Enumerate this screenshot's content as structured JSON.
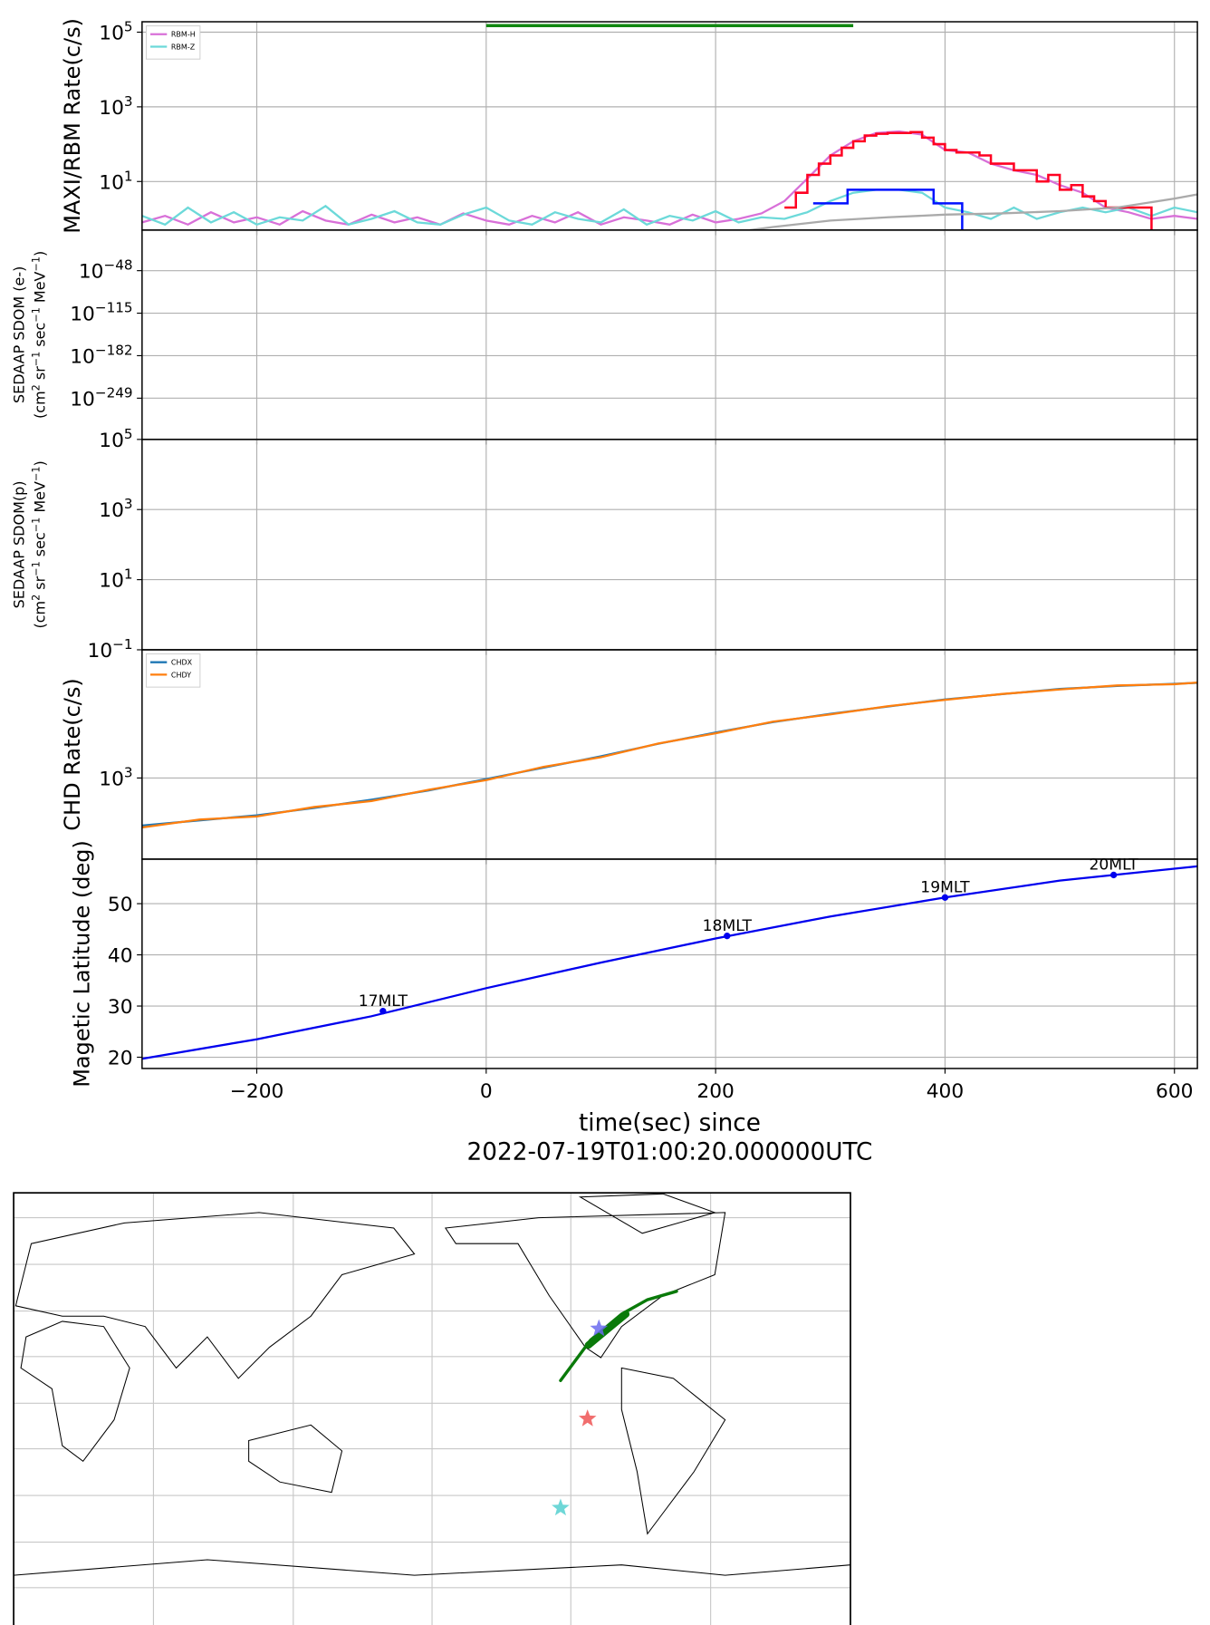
{
  "chart_data": [
    {
      "type": "line",
      "ylabel": "MAXI/RBM Rate(c/s)",
      "log_y": true,
      "grid": true,
      "legend": "upper left",
      "ylim": [
        0.5,
        190000
      ],
      "yticks": [
        {
          "value": 10,
          "label": "10^1"
        },
        {
          "value": 1000,
          "label": "10^3"
        },
        {
          "value": 100000,
          "label": "10^5"
        }
      ],
      "series": [
        {
          "name": "RBM-H",
          "color": "#d870d8",
          "x": [
            -300,
            -280,
            -260,
            -240,
            -220,
            -200,
            -180,
            -160,
            -140,
            -120,
            -100,
            -80,
            -60,
            -40,
            -20,
            0,
            20,
            40,
            60,
            80,
            100,
            120,
            140,
            160,
            180,
            200,
            220,
            240,
            260,
            280,
            300,
            320,
            340,
            360,
            380,
            400,
            420,
            440,
            460,
            480,
            500,
            520,
            540,
            560,
            580,
            600,
            620
          ],
          "values": [
            0.8,
            1.2,
            0.7,
            1.5,
            0.8,
            1.1,
            0.7,
            1.6,
            0.9,
            0.7,
            1.3,
            0.8,
            1.1,
            0.7,
            1.4,
            0.9,
            0.7,
            1.2,
            0.8,
            1.5,
            0.7,
            1.1,
            0.9,
            0.7,
            1.3,
            0.8,
            1.0,
            1.4,
            3,
            12,
            50,
            120,
            200,
            220,
            180,
            70,
            60,
            30,
            20,
            15,
            8,
            5,
            2,
            1.5,
            1,
            1.2,
            1
          ]
        },
        {
          "name": "RBM-Z",
          "color": "#6cd9d9",
          "x": [
            -300,
            -280,
            -260,
            -240,
            -220,
            -200,
            -180,
            -160,
            -140,
            -120,
            -100,
            -80,
            -60,
            -40,
            -20,
            0,
            20,
            40,
            60,
            80,
            100,
            120,
            140,
            160,
            180,
            200,
            220,
            240,
            260,
            280,
            300,
            320,
            340,
            360,
            380,
            400,
            420,
            440,
            460,
            480,
            500,
            520,
            540,
            560,
            580,
            600,
            620
          ],
          "values": [
            1.2,
            0.7,
            2.0,
            0.8,
            1.5,
            0.7,
            1.1,
            0.9,
            2.2,
            0.7,
            1.0,
            1.6,
            0.8,
            0.7,
            1.3,
            2.0,
            0.9,
            0.7,
            1.5,
            1.0,
            0.8,
            1.8,
            0.7,
            1.2,
            0.9,
            1.6,
            0.8,
            1.1,
            1,
            1.5,
            3,
            5,
            6,
            6,
            5,
            2,
            1.5,
            1,
            2,
            1,
            1.5,
            2,
            1.5,
            2,
            1.2,
            2,
            1.5
          ]
        },
        {
          "color": "#ff0022",
          "step": true,
          "x": [
            260,
            270,
            280,
            290,
            300,
            310,
            320,
            330,
            340,
            350,
            360,
            370,
            380,
            390,
            400,
            410,
            420,
            430,
            440,
            450,
            460,
            470,
            480,
            490,
            500,
            510,
            520,
            530,
            540,
            560,
            580
          ],
          "values": [
            2,
            5,
            15,
            30,
            50,
            80,
            120,
            170,
            190,
            200,
            200,
            210,
            150,
            100,
            70,
            60,
            60,
            50,
            30,
            30,
            20,
            20,
            10,
            15,
            6,
            8,
            4,
            3,
            2,
            2,
            2
          ]
        },
        {
          "color": "#0011ff",
          "step": true,
          "x": [
            285,
            315,
            390,
            415
          ],
          "values": [
            2.6,
            6,
            2.6,
            2.6
          ]
        },
        {
          "color": "#aaaaaa",
          "x": [
            230,
            250,
            300,
            350,
            400,
            450,
            500,
            550,
            600,
            620
          ],
          "values": [
            0.5,
            0.6,
            0.9,
            1.1,
            1.3,
            1.4,
            1.6,
            2.0,
            3.5,
            4.5
          ]
        },
        {
          "color": "#118811",
          "x": [
            0,
            320
          ],
          "values": [
            150000,
            150000
          ]
        }
      ]
    },
    {
      "type": "line",
      "ylabel": [
        "SEDAAP SDOM (e-)",
        "(cm^2 sr^−1 sec^−1 MeV^−1)"
      ],
      "log_y": true,
      "grid": true,
      "ylim": [
        1e-314,
        1e+16
      ],
      "yticks": [
        {
          "value": 1e-48,
          "label": "10^−48"
        },
        {
          "value": 1e-115,
          "label": "10^−115"
        },
        {
          "value": 1e-182,
          "label": "10^−182"
        },
        {
          "value": 1e-249,
          "label": "10^−249"
        }
      ]
    },
    {
      "type": "line",
      "ylabel": [
        "SEDAAP SDOM(p)",
        "(cm^2 sr^−1 sec^−1 MeV^−1)"
      ],
      "log_y": true,
      "grid": true,
      "ylim": [
        0.1,
        100000
      ],
      "yticks": [
        {
          "value": 0.1,
          "label": "10^−1"
        },
        {
          "value": 10,
          "label": "10^1"
        },
        {
          "value": 1000,
          "label": "10^3"
        },
        {
          "value": 100000,
          "label": "10^5"
        }
      ]
    },
    {
      "type": "line",
      "ylabel": "CHD Rate(c/s)",
      "log_y": true,
      "grid": true,
      "legend": "upper left",
      "ylim": [
        300,
        6700
      ],
      "yticks": [
        {
          "value": 1000,
          "label": "10^3"
        }
      ],
      "series": [
        {
          "name": "CHDX",
          "color": "#1f77b4",
          "x": [
            -300,
            -250,
            -200,
            -150,
            -100,
            -50,
            0,
            50,
            100,
            150,
            200,
            250,
            300,
            350,
            400,
            450,
            500,
            550,
            600,
            620
          ],
          "values": [
            494,
            533,
            575,
            641,
            724,
            832,
            985,
            1166,
            1380,
            1660,
            1965,
            2290,
            2590,
            2885,
            3210,
            3467,
            3744,
            3920,
            4043,
            4100
          ]
        },
        {
          "name": "CHDY",
          "color": "#ff7f0e",
          "x": [
            -300,
            -250,
            -200,
            -150,
            -100,
            -50,
            0,
            50,
            100,
            150,
            200,
            250,
            300,
            350,
            400,
            450,
            500,
            550,
            600,
            620
          ],
          "values": [
            480,
            540,
            565,
            650,
            710,
            840,
            970,
            1180,
            1360,
            1670,
            1940,
            2310,
            2570,
            2900,
            3190,
            3480,
            3720,
            3950,
            4020,
            4120
          ]
        }
      ]
    },
    {
      "type": "line",
      "ylabel": "Magetic Latitude  (deg)",
      "grid": true,
      "xlabel": [
        "time(sec) since",
        "2022-07-19T01:00:20.000000UTC"
      ],
      "xlim": [
        -300,
        620
      ],
      "xticks": [
        {
          "value": -200,
          "label": "−200"
        },
        0,
        200,
        400,
        600
      ],
      "ylim": [
        17.8,
        58.7
      ],
      "yticks": [
        20,
        30,
        40,
        50
      ],
      "series": [
        {
          "color": "#0000ee",
          "x": [
            -300,
            -200,
            -100,
            0,
            100,
            200,
            300,
            400,
            500,
            620
          ],
          "values": [
            19.7,
            23.5,
            28,
            33.5,
            38.5,
            43.2,
            47.5,
            51.2,
            54.5,
            57.3
          ]
        }
      ],
      "markers": {
        "color": "#0000ee",
        "x": [
          -90,
          210,
          400,
          547
        ],
        "values": [
          29,
          43.7,
          51.2,
          55.6
        ],
        "labels": [
          "17MLT",
          "18MLT",
          "19MLT",
          "20MLT"
        ]
      }
    },
    {
      "type": "map",
      "track": {
        "color": "#0a7a0a",
        "lon": [
          235.3,
          248.2,
          261.6,
          272.7,
          285.2
        ],
        "lat": [
          9.8,
          27.3,
          38.5,
          44.7,
          48.3
        ]
      },
      "track_highlight": {
        "color": "#0a7a0a",
        "lon": [
          247.3,
          255.3,
          263.4
        ],
        "lat": [
          25.1,
          31.8,
          38.5
        ]
      },
      "stars": {
        "lon": [
          251.8,
          246.9,
          235.3
        ],
        "lat": [
          32.2,
          -6.7,
          -45.2
        ],
        "colors": [
          "#6a6aee",
          "#ee5555",
          "#55d0d0"
        ]
      }
    }
  ]
}
